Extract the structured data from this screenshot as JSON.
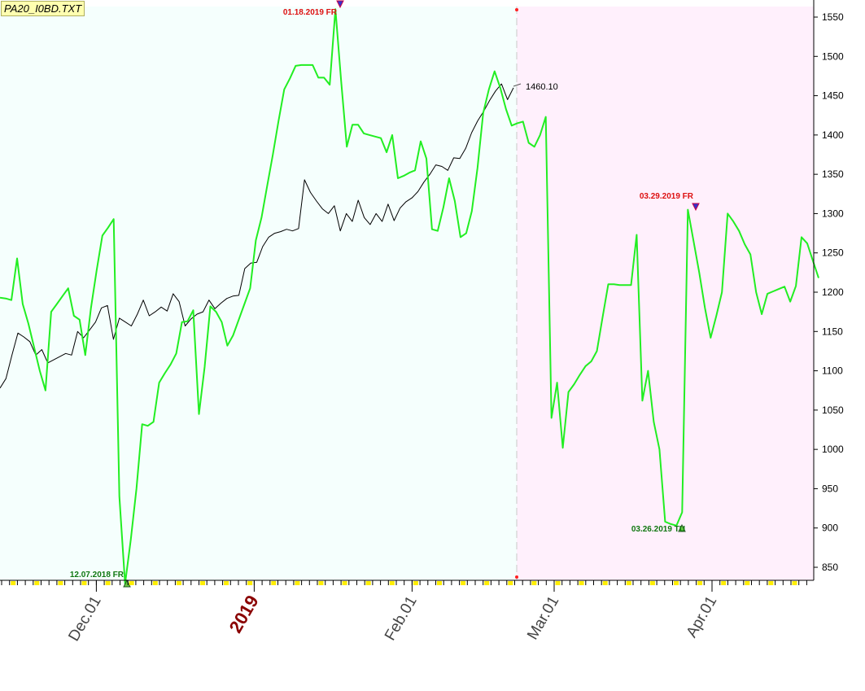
{
  "file_label": "PA20_I0BD.TXT",
  "chart_data": {
    "type": "line",
    "title": "",
    "xlabel": "",
    "ylabel": "",
    "ylim": [
      831,
      1562
    ],
    "y_ticks": [
      850,
      900,
      950,
      1000,
      1050,
      1100,
      1150,
      1200,
      1250,
      1300,
      1350,
      1400,
      1450,
      1500,
      1550
    ],
    "x_labels": [
      {
        "label": "Dec.01",
        "bar": 12,
        "bold": false
      },
      {
        "label": "2019",
        "bar": 32,
        "bold": true
      },
      {
        "label": "Feb.01",
        "bar": 52,
        "bold": false
      },
      {
        "label": "Mar.01",
        "bar": 70,
        "bold": false
      },
      {
        "label": "Apr.01",
        "bar": 90,
        "bold": false
      }
    ],
    "bar_count": 103,
    "split_bar": 65,
    "background_colors": {
      "history": "#f5fffd",
      "forecast": "#fff0fc"
    },
    "series": [
      {
        "color": "#000000",
        "values": [
          1078,
          1090,
          1120,
          1148,
          1143,
          1137,
          1120,
          1127,
          1110,
          1114,
          1118,
          1122,
          1120,
          1150,
          1142,
          1152,
          1162,
          1180,
          1183,
          1140,
          1167,
          1162,
          1157,
          1172,
          1190,
          1170,
          1175,
          1181,
          1176,
          1198,
          1188,
          1157,
          1166,
          1172,
          1175,
          1190,
          1179,
          1186,
          1192,
          1195,
          1196,
          1230,
          1237,
          1238,
          1258,
          1270,
          1275,
          1277,
          1280,
          1278,
          1281,
          1343,
          1327,
          1316,
          1306,
          1300,
          1310,
          1278,
          1300,
          1290,
          1317,
          1295,
          1286,
          1300,
          1290,
          1312,
          1291,
          1307,
          1315,
          1320,
          1328,
          1340,
          1350,
          1362,
          1360,
          1355,
          1371,
          1370,
          1383,
          1403,
          1418,
          1430,
          1444,
          1456,
          1465,
          1445,
          1460
        ]
      },
      {
        "color": "#22ee22",
        "values": [
          1193,
          1192,
          1190,
          1243,
          1185,
          1160,
          1130,
          1100,
          1075,
          1175,
          1185,
          1195,
          1205,
          1170,
          1165,
          1120,
          1180,
          1228,
          1272,
          1282,
          1293,
          940,
          829,
          885,
          950,
          1032,
          1030,
          1035,
          1085,
          1097,
          1108,
          1122,
          1162,
          1163,
          1177,
          1045,
          1105,
          1182,
          1175,
          1162,
          1132,
          1145,
          1165,
          1185,
          1205,
          1266,
          1295,
          1335,
          1375,
          1418,
          1458,
          1472,
          1488,
          1489,
          1489,
          1489,
          1473,
          1473,
          1464,
          1560,
          1469,
          1385,
          1413,
          1413,
          1402,
          1400,
          1398,
          1396,
          1378,
          1400,
          1345,
          1348,
          1352,
          1355,
          1392,
          1370,
          1280,
          1278,
          1308,
          1345,
          1316,
          1270,
          1275,
          1303,
          1358,
          1428,
          1458,
          1481,
          1460,
          1433,
          1412,
          1415,
          1417,
          1390,
          1385,
          1400,
          1423,
          1040,
          1085,
          1002,
          1073,
          1083,
          1095,
          1106,
          1112,
          1125,
          1168,
          1210,
          1210,
          1209,
          1209,
          1209,
          1273,
          1062,
          1100,
          1035,
          1000,
          908,
          905,
          903,
          920,
          1305,
          1265,
          1225,
          1180,
          1142,
          1170,
          1200,
          1300,
          1290,
          1278,
          1261,
          1248,
          1200,
          1172,
          1198,
          1201,
          1204,
          1207,
          1188,
          1208,
          1270,
          1262,
          1240,
          1218
        ]
      }
    ],
    "annotations": [
      {
        "text": "01.18.2019 FR",
        "kind": "high"
      },
      {
        "text": "12.07.2018 FR",
        "kind": "low"
      },
      {
        "text": "03.29.2019 FR",
        "kind": "high"
      },
      {
        "text": "03.26.2019 TU",
        "kind": "low"
      },
      {
        "text": "1460.10",
        "kind": "last-value"
      }
    ]
  }
}
